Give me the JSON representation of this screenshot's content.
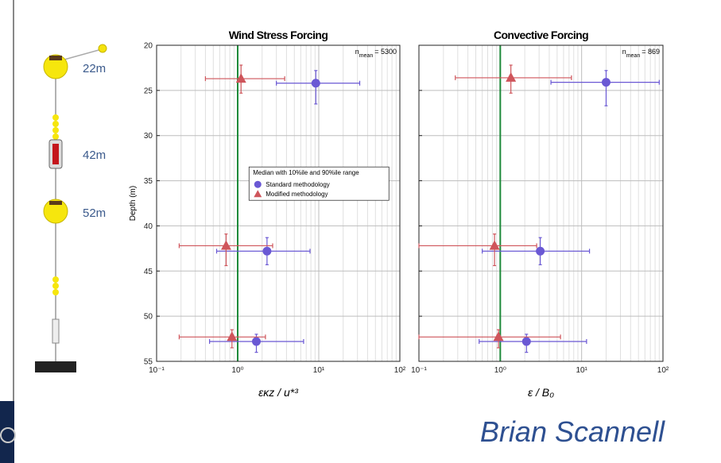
{
  "mooring": {
    "labels": [
      "22m",
      "42m",
      "52m"
    ]
  },
  "author": "Brian Scannell",
  "chart_data": [
    {
      "type": "scatter",
      "title": "Wind Stress Forcing",
      "xlabel": "εκz / u*³",
      "ylabel": "Depth (m)",
      "xscale": "log",
      "xlim": [
        0.1,
        100
      ],
      "xticks": [
        {
          "value": 0.1,
          "label": "10⁻¹"
        },
        {
          "value": 1,
          "label": "10⁰"
        },
        {
          "value": 10,
          "label": "10¹"
        },
        {
          "value": 100,
          "label": "10²"
        }
      ],
      "xminor": [
        0.2,
        0.3,
        0.4,
        0.5,
        0.6,
        0.7,
        0.8,
        0.9,
        2,
        3,
        4,
        5,
        6,
        7,
        8,
        9,
        20,
        30,
        40,
        50,
        60,
        70,
        80,
        90
      ],
      "ylim": [
        20,
        55
      ],
      "y_reversed": true,
      "yticks": [
        20,
        25,
        30,
        35,
        40,
        45,
        50,
        55
      ],
      "show_yticklabels": true,
      "grid": true,
      "reference_x": 1,
      "reference_color": "#1e8a3a",
      "annotation": "n",
      "annotation_sub": "mean",
      "annotation_value": "= 5300",
      "legend": "center",
      "legend_title": "Median with 10%ile and 90%ile range",
      "series": [
        {
          "name": "Standard methodology",
          "color": "#6a58d4",
          "marker": "circle",
          "x": [
            9.2,
            2.3,
            1.7
          ],
          "x_low": [
            3.0,
            0.55,
            0.45
          ],
          "x_high": [
            32,
            7.8,
            6.5
          ],
          "y": [
            24.2,
            42.8,
            52.8
          ],
          "y_low": [
            22.8,
            41.3,
            52.0
          ],
          "y_high": [
            26.5,
            44.3,
            54.0
          ]
        },
        {
          "name": "Modified methodology",
          "color": "#cf555b",
          "marker": "triangle",
          "x": [
            1.1,
            0.72,
            0.85
          ],
          "x_low": [
            0.4,
            0.19,
            0.19
          ],
          "x_high": [
            3.8,
            2.7,
            2.2
          ],
          "y": [
            23.7,
            42.2,
            52.3
          ],
          "y_low": [
            22.2,
            40.9,
            51.5
          ],
          "y_high": [
            25.3,
            44.4,
            53.5
          ]
        }
      ]
    },
    {
      "type": "scatter",
      "title": "Convective Forcing",
      "xlabel": "ε / B₀",
      "xscale": "log",
      "xlim": [
        0.1,
        100
      ],
      "xticks": [
        {
          "value": 0.1,
          "label": "10⁻¹"
        },
        {
          "value": 1,
          "label": "10⁰"
        },
        {
          "value": 10,
          "label": "10¹"
        },
        {
          "value": 100,
          "label": "10²"
        }
      ],
      "xminor": [
        0.2,
        0.3,
        0.4,
        0.5,
        0.6,
        0.7,
        0.8,
        0.9,
        2,
        3,
        4,
        5,
        6,
        7,
        8,
        9,
        20,
        30,
        40,
        50,
        60,
        70,
        80,
        90
      ],
      "ylim": [
        20,
        55
      ],
      "y_reversed": true,
      "yticks": [
        20,
        25,
        30,
        35,
        40,
        45,
        50,
        55
      ],
      "show_yticklabels": false,
      "grid": true,
      "reference_x": 1,
      "reference_color": "#1e8a3a",
      "annotation": "n",
      "annotation_sub": "mean",
      "annotation_value": "= 869",
      "series": [
        {
          "color": "#6a58d4",
          "marker": "circle",
          "x": [
            20,
            3.1,
            2.1
          ],
          "x_low": [
            4.2,
            0.6,
            0.55
          ],
          "x_high": [
            90,
            12.5,
            11.5
          ],
          "y": [
            24.1,
            42.8,
            52.8
          ],
          "y_low": [
            22.8,
            41.3,
            52.0
          ],
          "y_high": [
            26.7,
            44.3,
            54.0
          ]
        },
        {
          "color": "#cf555b",
          "marker": "triangle",
          "x": [
            1.35,
            0.85,
            0.95
          ],
          "x_low": [
            0.28,
            0.1,
            0.1
          ],
          "x_high": [
            7.5,
            2.8,
            5.5
          ],
          "y": [
            23.6,
            42.2,
            52.3
          ],
          "y_low": [
            22.2,
            40.9,
            51.5
          ],
          "y_high": [
            25.3,
            44.4,
            53.5
          ]
        }
      ]
    }
  ]
}
